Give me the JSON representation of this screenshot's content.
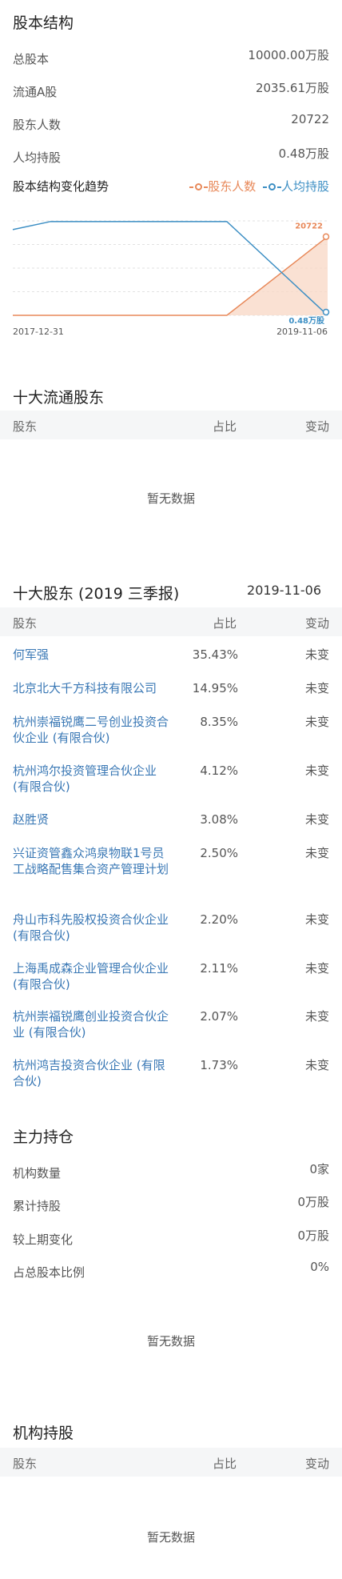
{
  "equity": {
    "title": "股本结构",
    "rows": [
      {
        "label": "总股本",
        "value": "10000.00万股"
      },
      {
        "label": "流通A股",
        "value": "2035.61万股"
      },
      {
        "label": "股东人数",
        "value": "20722"
      },
      {
        "label": "人均持股",
        "value": "0.48万股"
      }
    ],
    "trend_title": "股本结构变化趋势",
    "legend": [
      {
        "label": "股东人数",
        "color": "#e8895a"
      },
      {
        "label": "人均持股",
        "color": "#3d8fc4"
      }
    ]
  },
  "chart_data": {
    "type": "line",
    "x_labels": [
      "2017-12-31",
      "2019-11-06"
    ],
    "series": [
      {
        "name": "股东人数",
        "color": "#e8895a",
        "fill": "#f9d9c8",
        "normalized": [
          0.0,
          0.0,
          0.0,
          0.0,
          0.0,
          0.0,
          0.0,
          1.0
        ],
        "end_label": "20722"
      },
      {
        "name": "人均持股",
        "color": "#3d8fc4",
        "normalized": [
          0.85,
          0.93,
          0.93,
          0.93,
          0.93,
          0.93,
          0.93,
          0.0
        ],
        "end_label": "0.48万股"
      }
    ],
    "x_positions": [
      0,
      0.12,
      0.35,
      0.5,
      0.6,
      0.67,
      0.68,
      1.0
    ]
  },
  "float_top10": {
    "title": "十大流通股东",
    "headers": [
      "股东",
      "占比",
      "变动"
    ],
    "empty_text": "暂无数据"
  },
  "top10": {
    "title": "十大股东 (2019 三季报)",
    "date": "2019-11-06",
    "headers": [
      "股东",
      "占比",
      "变动"
    ],
    "rows": [
      {
        "name": "何军强",
        "ratio": "35.43%",
        "change": "未变"
      },
      {
        "name": "北京北大千方科技有限公司",
        "ratio": "14.95%",
        "change": "未变"
      },
      {
        "name": "杭州崇福锐鹰二号创业投资合伙企业 (有限合伙)",
        "ratio": "8.35%",
        "change": "未变"
      },
      {
        "name": "杭州鸿尔投资管理合伙企业 (有限合伙)",
        "ratio": "4.12%",
        "change": "未变"
      },
      {
        "name": "赵胜贤",
        "ratio": "3.08%",
        "change": "未变"
      },
      {
        "name": "兴证资管鑫众鸿泉物联1号员工战略配售集合资产管理计划",
        "ratio": "2.50%",
        "change": "未变"
      },
      {
        "name": "舟山市科先股权投资合伙企业 (有限合伙)",
        "ratio": "2.20%",
        "change": "未变"
      },
      {
        "name": "上海禹成森企业管理合伙企业 (有限合伙)",
        "ratio": "2.11%",
        "change": "未变"
      },
      {
        "name": "杭州崇福锐鹰创业投资合伙企业 (有限合伙)",
        "ratio": "2.07%",
        "change": "未变"
      },
      {
        "name": "杭州鸿吉投资合伙企业 (有限合伙)",
        "ratio": "1.73%",
        "change": "未变"
      }
    ]
  },
  "main_holding": {
    "title": "主力持仓",
    "rows": [
      {
        "label": "机构数量",
        "value": "0家"
      },
      {
        "label": "累计持股",
        "value": "0万股"
      },
      {
        "label": "较上期变化",
        "value": "0万股"
      },
      {
        "label": "占总股本比例",
        "value": "0%"
      }
    ],
    "empty_text": "暂无数据"
  },
  "inst_holding": {
    "title": "机构持股",
    "headers": [
      "股东",
      "占比",
      "变动"
    ],
    "empty_text": "暂无数据"
  }
}
